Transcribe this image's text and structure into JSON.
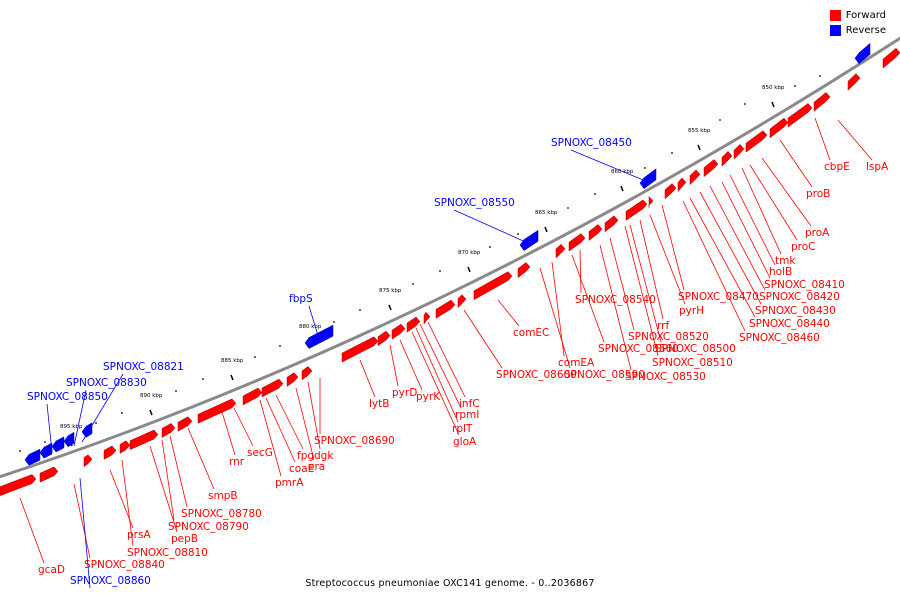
{
  "legend": {
    "forward_label": "Forward",
    "reverse_label": "Reverse",
    "forward_color": "#ff0000",
    "reverse_color": "#0000ff"
  },
  "caption": "Streptococcus pneumoniae OXC141 genome. - 0..2036867",
  "ticks": [
    {
      "label": "850 kbp",
      "kbp": 850
    },
    {
      "label": "855 kbp",
      "kbp": 855
    },
    {
      "label": "860 kbp",
      "kbp": 860
    },
    {
      "label": "865 kbp",
      "kbp": 865
    },
    {
      "label": "870 kbp",
      "kbp": 870
    },
    {
      "label": "875 kbp",
      "kbp": 875
    },
    {
      "label": "880 kbp",
      "kbp": 880
    },
    {
      "label": "885 kbp",
      "kbp": 885
    },
    {
      "label": "890 kbp",
      "kbp": 890
    },
    {
      "label": "895 kbp",
      "kbp": 895
    }
  ],
  "forward_labels": [
    "lspA",
    "cbpE",
    "proB",
    "proA",
    "proC",
    "tmk",
    "holB",
    "SPNOXC_08410",
    "SPNOXC_08420",
    "SPNOXC_08430",
    "SPNOXC_08440",
    "SPNOXC_08460",
    "SPNOXC_08470",
    "pyrH",
    "rrf",
    "SPNOXC_08500",
    "SPNOXC_08510",
    "SPNOXC_08520",
    "SPNOXC_08530",
    "SPNOXC_08540",
    "SPNOXC_08560",
    "comEA",
    "SPNOXC_08590",
    "comEC",
    "SPNOXC_08600",
    "infC",
    "rpmI",
    "rplT",
    "gloA",
    "pyrK",
    "pyrD",
    "lytB",
    "SPNOXC_08690",
    "dgk",
    "era",
    "fpg",
    "coaE",
    "pmrA",
    "secG",
    "rnr",
    "smpB",
    "SPNOXC_08780",
    "SPNOXC_08790",
    "pepB",
    "SPNOXC_08810",
    "prsA",
    "SPNOXC_08840",
    "gcaD"
  ],
  "reverse_labels": [
    "SPNOXC_08450",
    "SPNOXC_08550",
    "fbpS",
    "SPNOXC_08821",
    "SPNOXC_08830",
    "SPNOXC_08850",
    "SPNOXC_08860"
  ]
}
